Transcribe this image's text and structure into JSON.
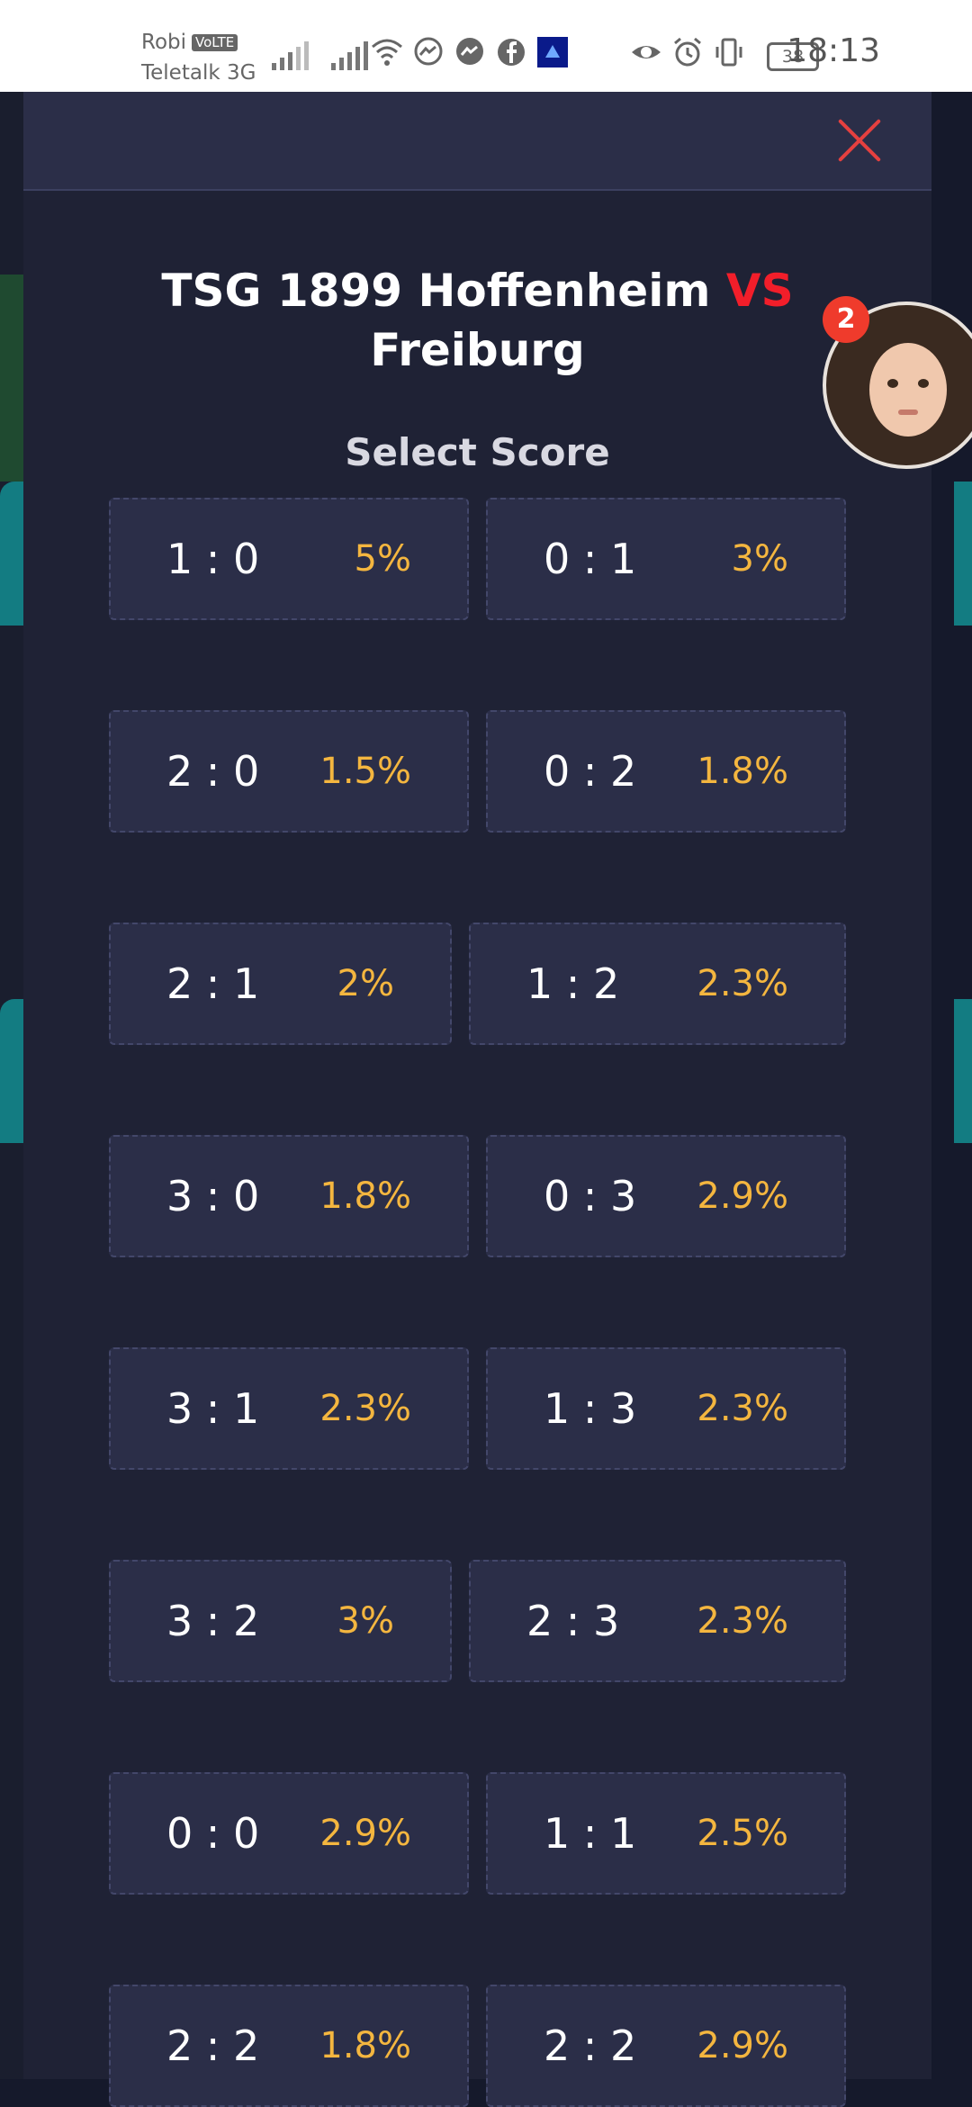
{
  "status_bar": {
    "carrier_1": "Robi",
    "volte": "VoLTE",
    "carrier_2": "Teletalk 3G",
    "battery": "38",
    "time": "18:13"
  },
  "modal": {
    "team_home": "TSG 1899 Hoffenheim",
    "vs": "VS",
    "team_away": "Freiburg",
    "select_label": "Select Score"
  },
  "scores": [
    {
      "score": "1 : 0",
      "odds": "5%"
    },
    {
      "score": "0 : 1",
      "odds": "3%"
    },
    {
      "score": "2 : 0",
      "odds": "1.5%"
    },
    {
      "score": "0 : 2",
      "odds": "1.8%"
    },
    {
      "score": "2 : 1",
      "odds": "2%"
    },
    {
      "score": "1 : 2",
      "odds": "2.3%"
    },
    {
      "score": "3 : 0",
      "odds": "1.8%"
    },
    {
      "score": "0 : 3",
      "odds": "2.9%"
    },
    {
      "score": "3 : 1",
      "odds": "2.3%"
    },
    {
      "score": "1 : 3",
      "odds": "2.3%"
    },
    {
      "score": "3 : 2",
      "odds": "3%"
    },
    {
      "score": "2 : 3",
      "odds": "2.3%"
    },
    {
      "score": "0 : 0",
      "odds": "2.9%"
    },
    {
      "score": "1 : 1",
      "odds": "2.5%"
    },
    {
      "score": "2 : 2",
      "odds": "1.8%"
    },
    {
      "score": "2 : 2",
      "odds": "2.9%"
    }
  ],
  "chat_head": {
    "badge_count": "2"
  },
  "colors": {
    "accent_vs": "#f21e2a",
    "odds": "#f4b63f",
    "close": "#e5403f"
  }
}
